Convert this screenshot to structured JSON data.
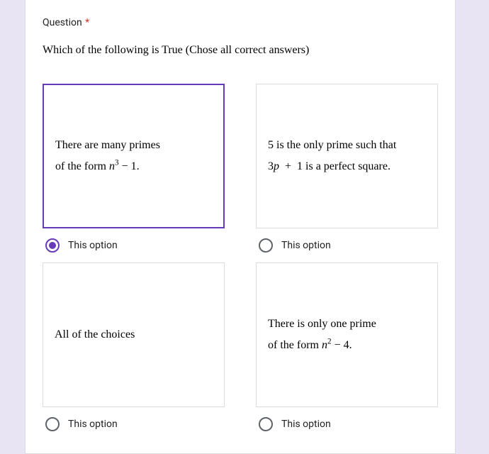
{
  "header": {
    "label": "Question",
    "required": true
  },
  "question": {
    "text": "Which of the following is True (Chose all correct answers)"
  },
  "options": [
    {
      "lines": [
        "There are many primes",
        "of the form <span class=\"math-var\">n</span><sup>3</sup> − 1."
      ],
      "radio_label": "This option",
      "selected": true
    },
    {
      "lines": [
        "5 is the only prime such that",
        "3<span class=\"math-var\">p</span>&nbsp; + &nbsp;1 is a perfect square."
      ],
      "radio_label": "This option",
      "selected": false
    },
    {
      "lines": [
        "All of the choices"
      ],
      "radio_label": "This option",
      "selected": false
    },
    {
      "lines": [
        "There is only one prime",
        "of the form <span class=\"math-var\">n</span><sup>2</sup> − 4."
      ],
      "radio_label": "This option",
      "selected": false
    }
  ],
  "colors": {
    "page_bg": "#e8e4f3",
    "card_bg": "#ffffff",
    "border": "#dadce0",
    "selected_border": "#673ab7",
    "text": "#202124",
    "required": "#d93025"
  }
}
